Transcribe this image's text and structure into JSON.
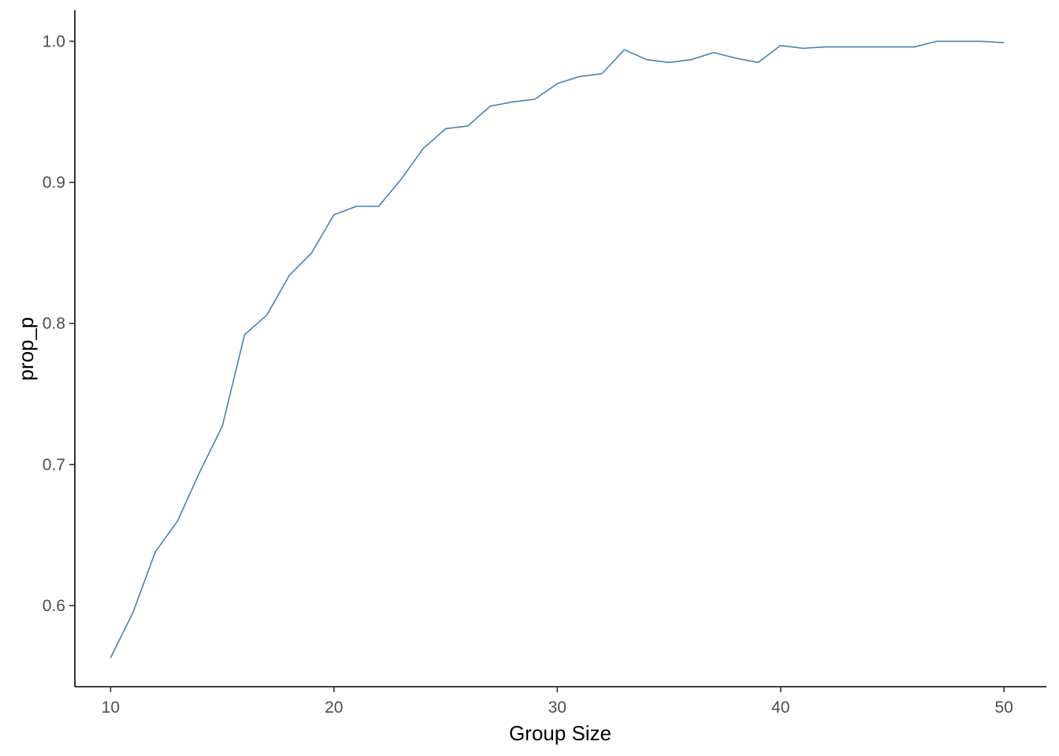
{
  "chart_data": {
    "type": "line",
    "title": "",
    "xlabel": "Group Size",
    "ylabel": "prop_p",
    "xlim": [
      8.4,
      51.9
    ],
    "ylim": [
      0.5425,
      1.022
    ],
    "x_ticks": [
      10,
      20,
      30,
      40,
      50
    ],
    "x_tick_labels": [
      "10",
      "20",
      "30",
      "40",
      "50"
    ],
    "y_ticks": [
      0.6,
      0.7,
      0.8,
      0.9,
      1.0
    ],
    "y_tick_labels": [
      "0.6",
      "0.7",
      "0.8",
      "0.9",
      "1.0"
    ],
    "grid": false,
    "legend": "none",
    "series": [
      {
        "color": "#4682b4",
        "x": [
          10,
          11,
          12,
          13,
          14,
          15,
          16,
          17,
          18,
          19,
          20,
          21,
          22,
          23,
          24,
          25,
          26,
          27,
          28,
          29,
          30,
          31,
          32,
          33,
          34,
          35,
          36,
          37,
          38,
          39,
          40,
          41,
          42,
          43,
          44,
          45,
          46,
          47,
          48,
          49,
          50
        ],
        "y": [
          0.563,
          0.595,
          0.638,
          0.66,
          0.695,
          0.727,
          0.792,
          0.806,
          0.834,
          0.85,
          0.877,
          0.883,
          0.883,
          0.902,
          0.924,
          0.938,
          0.94,
          0.954,
          0.957,
          0.959,
          0.97,
          0.975,
          0.977,
          0.994,
          0.987,
          0.985,
          0.987,
          0.992,
          0.988,
          0.985,
          0.997,
          0.995,
          0.996,
          0.996,
          0.996,
          0.996,
          0.996,
          1.0,
          1.0,
          1.0,
          0.999
        ]
      }
    ]
  }
}
